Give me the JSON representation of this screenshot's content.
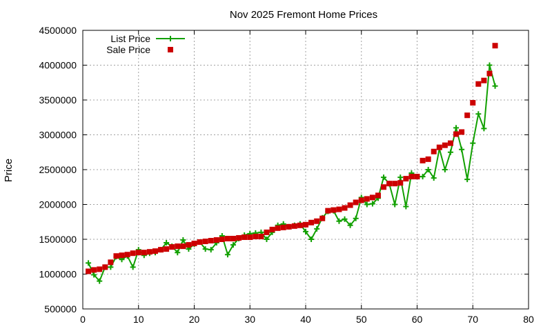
{
  "chart_data": {
    "type": "line",
    "title": "Nov 2025 Fremont Home Prices",
    "xlabel": "",
    "ylabel": "Price",
    "xlim": [
      0,
      80
    ],
    "ylim": [
      500000,
      4500000
    ],
    "xticks": [
      0,
      10,
      20,
      30,
      40,
      50,
      60,
      70,
      80
    ],
    "yticks": [
      500000,
      1000000,
      1500000,
      2000000,
      2500000,
      3000000,
      3500000,
      4000000,
      4500000
    ],
    "grid": true,
    "legend_position": "top-left",
    "series": [
      {
        "name": "List Price",
        "style": "line+points",
        "color": "#11a000",
        "x": [
          1,
          2,
          3,
          4,
          5,
          6,
          7,
          8,
          9,
          10,
          11,
          12,
          13,
          14,
          15,
          16,
          17,
          18,
          19,
          20,
          21,
          22,
          23,
          24,
          25,
          26,
          27,
          28,
          29,
          30,
          31,
          32,
          33,
          34,
          35,
          36,
          37,
          38,
          39,
          40,
          41,
          42,
          43,
          44,
          45,
          46,
          47,
          48,
          49,
          50,
          51,
          52,
          53,
          54,
          55,
          56,
          57,
          58,
          59,
          60,
          61,
          62,
          63,
          64,
          65,
          66,
          67,
          68,
          69,
          70,
          71,
          72,
          73,
          74
        ],
        "y": [
          1160000,
          990000,
          900000,
          1100000,
          1100000,
          1250000,
          1210000,
          1260000,
          1100000,
          1350000,
          1270000,
          1300000,
          1310000,
          1350000,
          1450000,
          1400000,
          1310000,
          1490000,
          1360000,
          1430000,
          1460000,
          1360000,
          1350000,
          1450000,
          1550000,
          1280000,
          1420000,
          1510000,
          1560000,
          1580000,
          1590000,
          1600000,
          1500000,
          1600000,
          1700000,
          1720000,
          1680000,
          1700000,
          1720000,
          1610000,
          1500000,
          1650000,
          1810000,
          1900000,
          1910000,
          1760000,
          1790000,
          1700000,
          1800000,
          2100000,
          2000000,
          2010000,
          2090000,
          2390000,
          2300000,
          2000000,
          2390000,
          1970000,
          2450000,
          2400000,
          2400000,
          2500000,
          2380000,
          2800000,
          2500000,
          2750000,
          3100000,
          2790000,
          2360000,
          2880000,
          3300000,
          3090000,
          4000000,
          3700000
        ]
      },
      {
        "name": "Sale Price",
        "style": "points",
        "color": "#cc0000",
        "x": [
          1,
          2,
          3,
          4,
          5,
          6,
          7,
          8,
          9,
          10,
          11,
          12,
          13,
          14,
          15,
          16,
          17,
          18,
          19,
          20,
          21,
          22,
          23,
          24,
          25,
          26,
          27,
          28,
          29,
          30,
          31,
          32,
          33,
          34,
          35,
          36,
          37,
          38,
          39,
          40,
          41,
          42,
          43,
          44,
          45,
          46,
          47,
          48,
          49,
          50,
          51,
          52,
          53,
          54,
          55,
          56,
          57,
          58,
          59,
          60,
          61,
          62,
          63,
          64,
          65,
          66,
          67,
          68,
          69,
          70,
          71,
          72,
          73,
          74
        ],
        "y": [
          1040000,
          1060000,
          1070000,
          1100000,
          1170000,
          1260000,
          1270000,
          1280000,
          1300000,
          1310000,
          1310000,
          1320000,
          1330000,
          1350000,
          1360000,
          1390000,
          1400000,
          1400000,
          1420000,
          1440000,
          1460000,
          1470000,
          1480000,
          1490000,
          1500000,
          1510000,
          1510000,
          1520000,
          1530000,
          1530000,
          1540000,
          1540000,
          1600000,
          1640000,
          1660000,
          1670000,
          1680000,
          1690000,
          1700000,
          1710000,
          1740000,
          1760000,
          1800000,
          1910000,
          1920000,
          1930000,
          1950000,
          1990000,
          2030000,
          2060000,
          2080000,
          2100000,
          2130000,
          2250000,
          2300000,
          2300000,
          2310000,
          2370000,
          2400000,
          2400000,
          2630000,
          2650000,
          2760000,
          2820000,
          2850000,
          2880000,
          3010000,
          3040000,
          3280000,
          3460000,
          3730000,
          3780000,
          3880000,
          4280000
        ]
      }
    ]
  }
}
